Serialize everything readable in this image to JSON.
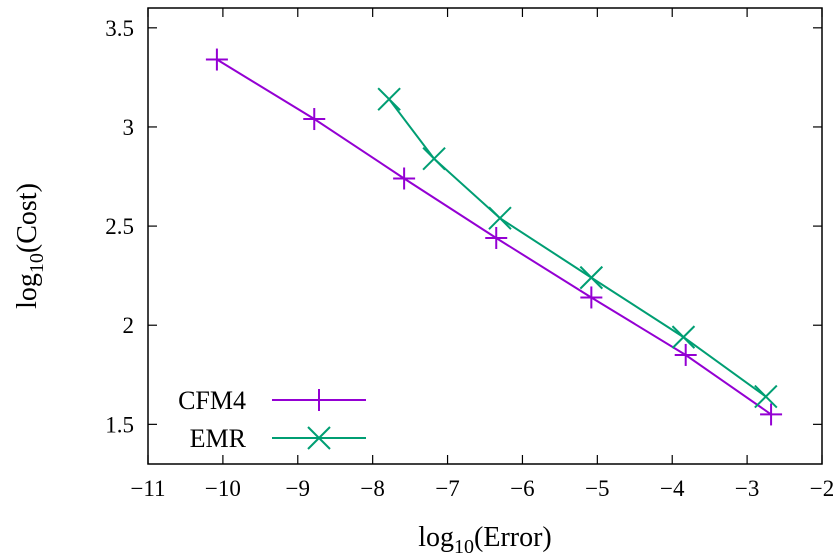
{
  "chart_data": {
    "type": "line",
    "xlabel": {
      "base": "log",
      "sub": "10",
      "rest": "(Error)"
    },
    "ylabel": {
      "base": "log",
      "sub": "10",
      "rest": "(Cost)"
    },
    "xlim": [
      -11,
      -2
    ],
    "ylim": [
      1.3,
      3.6
    ],
    "xticks": [
      -11,
      -10,
      -9,
      -8,
      -7,
      -6,
      -5,
      -4,
      -3,
      -2
    ],
    "xtick_labels": [
      "−11",
      "−10",
      "−9",
      "−8",
      "−7",
      "−6",
      "−5",
      "−4",
      "−3",
      "−2"
    ],
    "yticks": [
      1.5,
      2,
      2.5,
      3,
      3.5
    ],
    "ytick_labels": [
      "1.5",
      "2",
      "2.5",
      "3",
      "3.5"
    ],
    "grid": false,
    "legend_position": "bottom-left",
    "series": [
      {
        "name": "CFM4",
        "color": "#9400d3",
        "marker": "plus",
        "x": [
          -10.08,
          -8.78,
          -7.58,
          -6.35,
          -5.08,
          -3.82,
          -2.68
        ],
        "y": [
          3.34,
          3.04,
          2.74,
          2.44,
          2.14,
          1.85,
          1.55
        ]
      },
      {
        "name": "EMR",
        "color": "#009e73",
        "marker": "cross",
        "x": [
          -7.78,
          -7.18,
          -6.3,
          -5.08,
          -3.85,
          -2.75
        ],
        "y": [
          3.14,
          2.84,
          2.54,
          2.24,
          1.94,
          1.64
        ]
      }
    ]
  }
}
